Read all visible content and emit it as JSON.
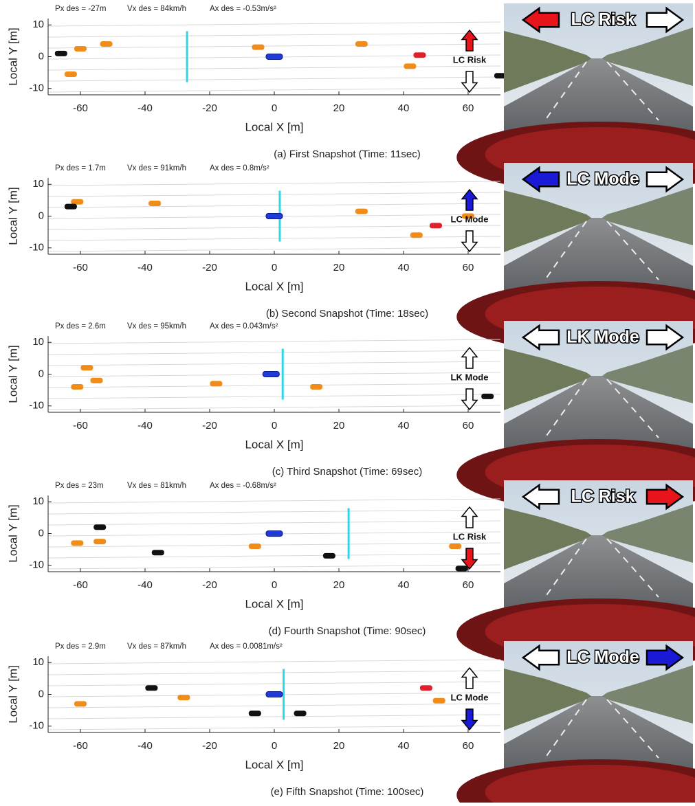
{
  "chart_data": [
    {
      "type": "scatter",
      "caption": "(a) First Snapshot (Time: 11sec)",
      "annotations": [
        "Px des = -27m",
        "Vx des = 84km/h",
        "Ax des = -0.53m/s²"
      ],
      "x_label": "Local X [m]",
      "y_label": "Local Y [m]",
      "xlim": [
        -70,
        70
      ],
      "ylim": [
        -12,
        12
      ],
      "xticks": [
        -60,
        -40,
        -20,
        0,
        20,
        40,
        60
      ],
      "yticks": [
        -10,
        0,
        10
      ],
      "target_x": -27,
      "series": [
        {
          "color": "#1f3ad6",
          "x": [
            0
          ],
          "y": [
            0
          ]
        },
        {
          "color": "#f08c1a",
          "x": [
            -52,
            -60,
            -5,
            27,
            42,
            -63
          ],
          "y": [
            4,
            2.5,
            3,
            4,
            -3,
            -5.5
          ]
        },
        {
          "color": "#e0202a",
          "x": [
            45
          ],
          "y": [
            0.5
          ]
        },
        {
          "color": "#111111",
          "x": [
            -66,
            70
          ],
          "y": [
            1,
            -6
          ]
        }
      ],
      "mode_label": "LC Risk",
      "camera_label": "LC Risk",
      "left_arrow_color": "#e8141b",
      "right_arrow_color": "#ffffff"
    },
    {
      "type": "scatter",
      "caption": "(b) Second Snapshot (Time: 18sec)",
      "annotations": [
        "Px des = 1.7m",
        "Vx des = 91km/h",
        "Ax des = 0.8m/s²"
      ],
      "x_label": "Local X [m]",
      "y_label": "Local Y [m]",
      "xlim": [
        -70,
        70
      ],
      "ylim": [
        -12,
        12
      ],
      "xticks": [
        -60,
        -40,
        -20,
        0,
        20,
        40,
        60
      ],
      "yticks": [
        -10,
        0,
        10
      ],
      "target_x": 1.7,
      "series": [
        {
          "color": "#1f3ad6",
          "x": [
            0
          ],
          "y": [
            0
          ]
        },
        {
          "color": "#f08c1a",
          "x": [
            -61,
            -37,
            27,
            60,
            44
          ],
          "y": [
            4.5,
            4,
            1.5,
            0,
            -6
          ]
        },
        {
          "color": "#e0202a",
          "x": [
            50
          ],
          "y": [
            -3
          ]
        },
        {
          "color": "#111111",
          "x": [
            -63
          ],
          "y": [
            3
          ]
        }
      ],
      "mode_label": "LC Mode",
      "camera_label": "LC Mode",
      "left_arrow_color": "#1a1ad6",
      "right_arrow_color": "#ffffff"
    },
    {
      "type": "scatter",
      "caption": "(c) Third Snapshot (Time: 69sec)",
      "annotations": [
        "Px des = 2.6m",
        "Vx des = 95km/h",
        "Ax des = 0.043m/s²"
      ],
      "x_label": "Local X [m]",
      "y_label": "Local Y [m]",
      "xlim": [
        -70,
        70
      ],
      "ylim": [
        -12,
        12
      ],
      "xticks": [
        -60,
        -40,
        -20,
        0,
        20,
        40,
        60
      ],
      "yticks": [
        -10,
        0,
        10
      ],
      "target_x": 2.6,
      "series": [
        {
          "color": "#1f3ad6",
          "x": [
            -1
          ],
          "y": [
            0
          ]
        },
        {
          "color": "#f08c1a",
          "x": [
            -58,
            -55,
            -61,
            -18,
            13
          ],
          "y": [
            2,
            -2,
            -4,
            -3,
            -4
          ]
        },
        {
          "color": "#111111",
          "x": [
            66
          ],
          "y": [
            -7
          ]
        }
      ],
      "mode_label": "LK Mode",
      "camera_label": "LK Mode",
      "left_arrow_color": "#ffffff",
      "right_arrow_color": "#ffffff"
    },
    {
      "type": "scatter",
      "caption": "(d) Fourth Snapshot (Time: 90sec)",
      "annotations": [
        "Px des = 23m",
        "Vx des = 81km/h",
        "Ax des = -0.68m/s²"
      ],
      "x_label": "Local X [m]",
      "y_label": "Local Y [m]",
      "xlim": [
        -70,
        70
      ],
      "ylim": [
        -12,
        12
      ],
      "xticks": [
        -60,
        -40,
        -20,
        0,
        20,
        40,
        60
      ],
      "yticks": [
        -10,
        0,
        10
      ],
      "target_x": 23,
      "series": [
        {
          "color": "#1f3ad6",
          "x": [
            0
          ],
          "y": [
            0
          ]
        },
        {
          "color": "#f08c1a",
          "x": [
            -54,
            -61,
            -6,
            56
          ],
          "y": [
            -2.5,
            -3,
            -4,
            -4
          ]
        },
        {
          "color": "#111111",
          "x": [
            -54,
            -36,
            17,
            58
          ],
          "y": [
            2,
            -6,
            -7,
            -11
          ]
        }
      ],
      "mode_label": "LC Risk",
      "camera_label": "LC Risk",
      "left_arrow_color": "#ffffff",
      "right_arrow_color": "#e8141b"
    },
    {
      "type": "scatter",
      "caption": "(e) Fifth Snapshot (Time: 100sec)",
      "annotations": [
        "Px des = 2.9m",
        "Vx des = 87km/h",
        "Ax des = 0.0081m/s²"
      ],
      "x_label": "Local X [m]",
      "y_label": "Local Y [m]",
      "xlim": [
        -70,
        70
      ],
      "ylim": [
        -12,
        12
      ],
      "xticks": [
        -60,
        -40,
        -20,
        0,
        20,
        40,
        60
      ],
      "yticks": [
        -10,
        0,
        10
      ],
      "target_x": 2.9,
      "series": [
        {
          "color": "#1f3ad6",
          "x": [
            0
          ],
          "y": [
            0
          ]
        },
        {
          "color": "#f08c1a",
          "x": [
            -60,
            -28,
            51
          ],
          "y": [
            -3,
            -1,
            -2
          ]
        },
        {
          "color": "#e0202a",
          "x": [
            47
          ],
          "y": [
            2
          ]
        },
        {
          "color": "#111111",
          "x": [
            -38,
            -6,
            8
          ],
          "y": [
            2,
            -6,
            -6
          ]
        }
      ],
      "mode_label": "LC Mode",
      "camera_label": "LC Mode",
      "left_arrow_color": "#ffffff",
      "right_arrow_color": "#1a1ad6"
    }
  ]
}
